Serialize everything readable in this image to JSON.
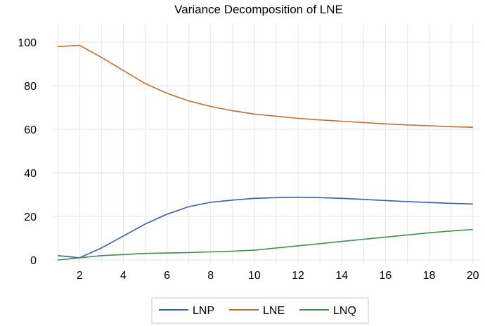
{
  "chart_data": {
    "type": "line",
    "title": "Variance Decomposition of LNE",
    "xlabel": "",
    "ylabel": "",
    "x": [
      1,
      2,
      3,
      4,
      5,
      6,
      7,
      8,
      9,
      10,
      11,
      12,
      13,
      14,
      15,
      16,
      17,
      18,
      19,
      20
    ],
    "xlim": [
      0.8,
      20.3
    ],
    "ylim": [
      0,
      100
    ],
    "xticks": [
      2,
      4,
      6,
      8,
      10,
      12,
      14,
      16,
      18,
      20
    ],
    "yticks": [
      0,
      20,
      40,
      60,
      80,
      100
    ],
    "grid": true,
    "legend_position": "bottom",
    "series": [
      {
        "name": "LNP",
        "color": "#3b5fa0",
        "values": [
          2.0,
          1.0,
          5.5,
          11.0,
          16.5,
          21.0,
          24.5,
          26.5,
          27.5,
          28.3,
          28.6,
          28.8,
          28.6,
          28.3,
          27.8,
          27.3,
          26.8,
          26.4,
          26.0,
          25.7
        ]
      },
      {
        "name": "LNE",
        "color": "#c07030",
        "values": [
          98.0,
          98.5,
          93.0,
          87.0,
          81.0,
          76.5,
          73.0,
          70.5,
          68.5,
          67.0,
          66.0,
          65.0,
          64.3,
          63.7,
          63.1,
          62.5,
          62.0,
          61.6,
          61.2,
          60.9
        ]
      },
      {
        "name": "LNQ",
        "color": "#3f8f4f",
        "values": [
          0.0,
          1.0,
          2.0,
          2.5,
          3.0,
          3.2,
          3.4,
          3.7,
          4.0,
          4.5,
          5.5,
          6.5,
          7.5,
          8.5,
          9.5,
          10.5,
          11.5,
          12.5,
          13.3,
          14.0
        ]
      }
    ]
  }
}
